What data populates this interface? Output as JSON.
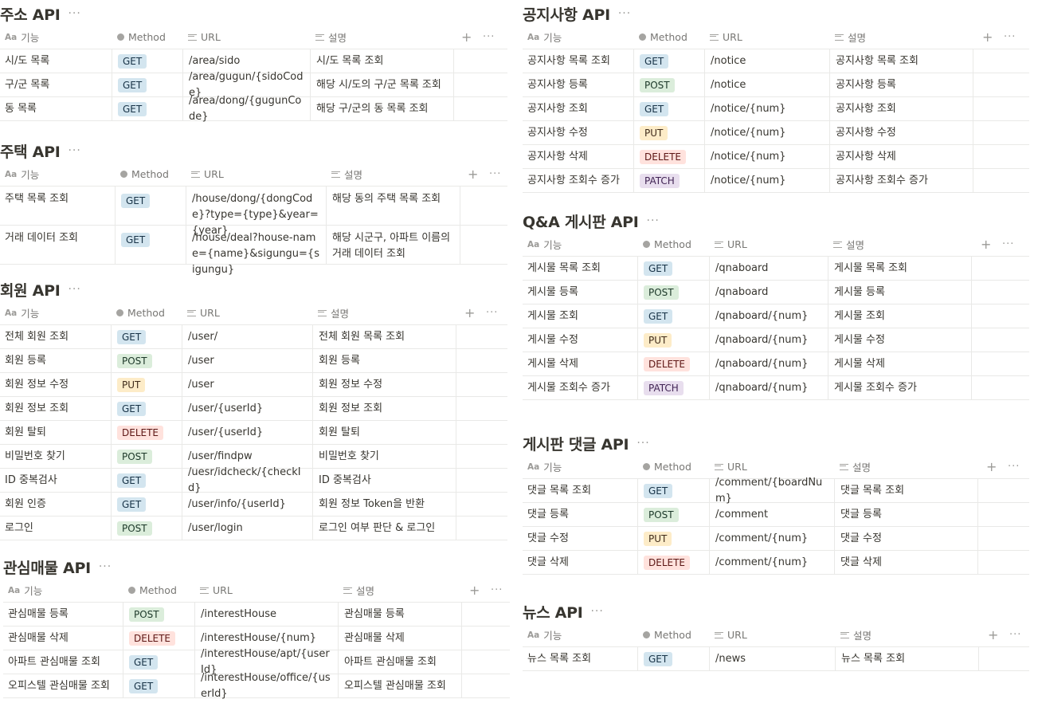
{
  "column_headers": {
    "feature": "기능",
    "method": "Method",
    "url": "URL",
    "description": "설명"
  },
  "header_icons": {
    "feature": "Aa",
    "method": "select-icon",
    "url": "text-icon",
    "description": "text-icon"
  },
  "more_label": "···",
  "add_label": "+",
  "method_colors": {
    "GET": "#d3e5ef",
    "POST": "#dbeddb",
    "PUT": "#fdecc8",
    "DELETE": "#ffe2dd",
    "PATCH": "#e8deee"
  },
  "databases": [
    {
      "title": "주소 API",
      "rows": [
        {
          "feature": "시/도 목록",
          "method": "GET",
          "url": "/area/sido",
          "description": "시/도 목록 조회"
        },
        {
          "feature": "구/군 목록",
          "method": "GET",
          "url": "/area/gugun/{sidoCode}",
          "description": "해당 시/도의 구/군 목록 조회"
        },
        {
          "feature": "동 목록",
          "method": "GET",
          "url": "/area/dong/{gugunCode}",
          "description": "해당 구/군의 동 목록 조회"
        }
      ]
    },
    {
      "title": "주택 API",
      "rows": [
        {
          "feature": "주택 목록 조회",
          "method": "GET",
          "url": "/house/dong/{dongCode}?type={type}&year={year}",
          "description": "해당 동의 주택 목록 조회"
        },
        {
          "feature": "거래 데이터 조회",
          "method": "GET",
          "url": "/house/deal?house-name={name}&sigungu={sigungu}",
          "description": "해당 시군구, 아파트 이름의 거래 데이터 조회"
        }
      ]
    },
    {
      "title": "회원 API",
      "rows": [
        {
          "feature": "전체 회원 조회",
          "method": "GET",
          "url": "/user/",
          "description": "전체 회원 목록 조회"
        },
        {
          "feature": "회원 등록",
          "method": "POST",
          "url": "/user",
          "description": "회원 등록"
        },
        {
          "feature": "회원 정보 수정",
          "method": "PUT",
          "url": "/user",
          "description": "회원 정보 수정"
        },
        {
          "feature": "회원 정보 조회",
          "method": "GET",
          "url": "/user/{userId}",
          "description": "회원 정보 조회"
        },
        {
          "feature": "회원 탈퇴",
          "method": "DELETE",
          "url": "/user/{userId}",
          "description": "회원 탈퇴"
        },
        {
          "feature": "비밀번호 찾기",
          "method": "POST",
          "url": "/user/findpw",
          "description": "비밀번호 찾기"
        },
        {
          "feature": "ID 중복검사",
          "method": "GET",
          "url": "/uesr/idcheck/{checkId}",
          "description": "ID 중복검사"
        },
        {
          "feature": "회원 인증",
          "method": "GET",
          "url": "/user/info/{userId}",
          "description": "회원 정보 Token을 반환"
        },
        {
          "feature": "로그인",
          "method": "POST",
          "url": "/user/login",
          "description": "로그인 여부 판단 & 로그인"
        }
      ]
    },
    {
      "title": "관심매물 API",
      "rows": [
        {
          "feature": "관심매물 등록",
          "method": "POST",
          "url": "/interestHouse",
          "description": "관심매물 등록"
        },
        {
          "feature": "관심매물 삭제",
          "method": "DELETE",
          "url": "/interestHouse/{num}",
          "description": "관심매물 삭제"
        },
        {
          "feature": "아파트 관심매물 조회",
          "method": "GET",
          "url": "/interestHouse/apt/{userId}",
          "description": "아파트 관심매물 조회"
        },
        {
          "feature": "오피스텔 관심매물 조회",
          "method": "GET",
          "url": "/interestHouse/office/{userId}",
          "description": "오피스텔 관심매물 조회"
        }
      ]
    },
    {
      "title": "공지사항 API",
      "rows": [
        {
          "feature": "공지사항 목록 조회",
          "method": "GET",
          "url": "/notice",
          "description": "공지사항 목록 조회"
        },
        {
          "feature": "공지사항 등록",
          "method": "POST",
          "url": "/notice",
          "description": "공지사항 등록"
        },
        {
          "feature": "공지사항 조회",
          "method": "GET",
          "url": "/notice/{num}",
          "description": "공지사항 조회"
        },
        {
          "feature": "공지사항 수정",
          "method": "PUT",
          "url": "/notice/{num}",
          "description": "공지사항 수정"
        },
        {
          "feature": "공지사항 삭제",
          "method": "DELETE",
          "url": "/notice/{num}",
          "description": "공지사항 삭제"
        },
        {
          "feature": "공지사항 조회수 증가",
          "method": "PATCH",
          "url": "/notice/{num}",
          "description": "공지사항 조회수 증가"
        }
      ]
    },
    {
      "title": "Q&A 게시판 API",
      "rows": [
        {
          "feature": "게시물 목록 조회",
          "method": "GET",
          "url": "/qnaboard",
          "description": "게시물 목록 조회"
        },
        {
          "feature": "게시물 등록",
          "method": "POST",
          "url": "/qnaboard",
          "description": "게시물 등록"
        },
        {
          "feature": "게시물 조회",
          "method": "GET",
          "url": "/qnaboard/{num}",
          "description": "게시물 조회"
        },
        {
          "feature": "게시물 수정",
          "method": "PUT",
          "url": "/qnaboard/{num}",
          "description": "게시물 수정"
        },
        {
          "feature": "게시물 삭제",
          "method": "DELETE",
          "url": "/qnaboard/{num}",
          "description": "게시물 삭제"
        },
        {
          "feature": "게시물 조회수 증가",
          "method": "PATCH",
          "url": "/qnaboard/{num}",
          "description": "게시물 조회수 증가"
        }
      ]
    },
    {
      "title": "게시판 댓글 API",
      "rows": [
        {
          "feature": "댓글 목록 조회",
          "method": "GET",
          "url": "/comment/{boardNum}",
          "description": "댓글 목록 조회"
        },
        {
          "feature": "댓글 등록",
          "method": "POST",
          "url": "/comment",
          "description": "댓글 등록"
        },
        {
          "feature": "댓글 수정",
          "method": "PUT",
          "url": "/comment/{num}",
          "description": "댓글 수정"
        },
        {
          "feature": "댓글 삭제",
          "method": "DELETE",
          "url": "/comment/{num}",
          "description": "댓글 삭제"
        }
      ]
    },
    {
      "title": "뉴스 API",
      "rows": [
        {
          "feature": "뉴스 목록 조회",
          "method": "GET",
          "url": "/news",
          "description": "뉴스 목록 조회"
        }
      ]
    }
  ]
}
